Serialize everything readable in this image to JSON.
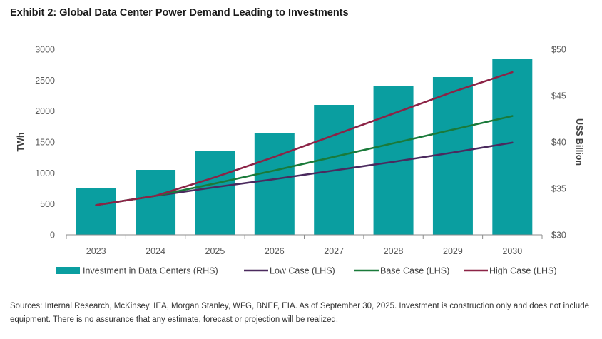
{
  "title": "Exhibit 2: Global Data Center Power Demand Leading to Investments",
  "source_note": "Sources: Internal Research, McKinsey, IEA, Morgan Stanley, WFG, BNEF, EIA. As of September 30, 2025. Investment is construction only and does not include equipment. There is no assurance that any estimate, forecast or projection will be realized.",
  "chart_data": {
    "type": "bar",
    "categories": [
      "2023",
      "2024",
      "2025",
      "2026",
      "2027",
      "2028",
      "2029",
      "2030"
    ],
    "y_left": {
      "label": "TWh",
      "range": [
        0,
        3000
      ],
      "ticks": [
        "0",
        "500",
        "1000",
        "1500",
        "2000",
        "2500",
        "3000"
      ]
    },
    "y_right": {
      "label": "US$ Billion",
      "range": [
        30,
        50
      ],
      "ticks": [
        "$30",
        "$35",
        "$40",
        "$45",
        "$50"
      ]
    },
    "legend_position": "bottom",
    "bars": {
      "name": "Investment in Data Centers (RHS)",
      "axis": "right",
      "color": "#0a9ea0",
      "values": [
        35.0,
        37.0,
        39.0,
        41.0,
        44.0,
        46.0,
        47.0,
        49.0
      ]
    },
    "lines": [
      {
        "name": "Low Case (LHS)",
        "axis": "left",
        "color": "#4b2a5e",
        "values": [
          480,
          630,
          770,
          900,
          1040,
          1180,
          1330,
          1490
        ]
      },
      {
        "name": "Base Case (LHS)",
        "axis": "left",
        "color": "#1a7a3a",
        "values": [
          480,
          630,
          830,
          1040,
          1260,
          1480,
          1700,
          1920
        ]
      },
      {
        "name": "High Case  (LHS)",
        "axis": "left",
        "color": "#8c2346",
        "values": [
          480,
          630,
          930,
          1260,
          1610,
          1960,
          2310,
          2630
        ]
      }
    ]
  }
}
